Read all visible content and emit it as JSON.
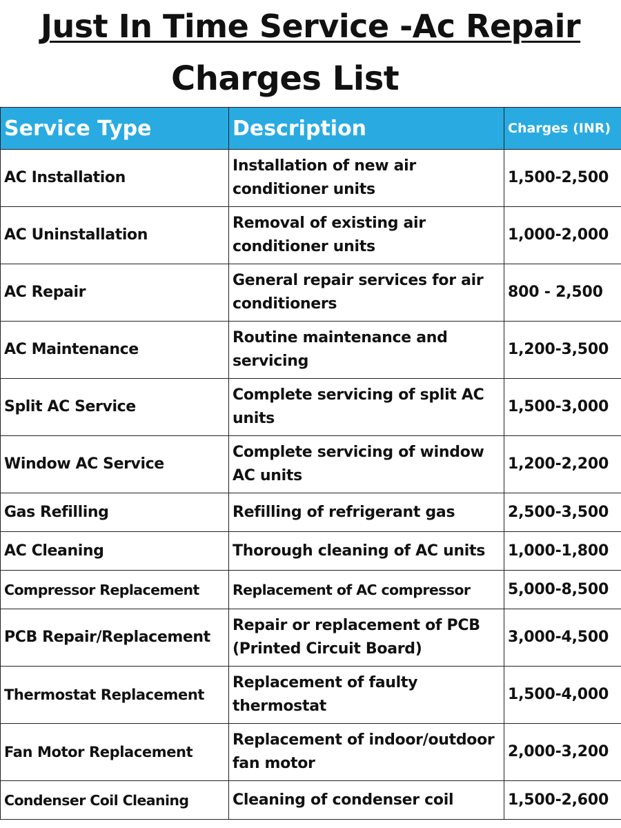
{
  "title": {
    "line1": "Just In Time Service -Ac Repair",
    "line2": "Charges List"
  },
  "table": {
    "headers": [
      "Service Type",
      "Description",
      "Charges (INR)"
    ],
    "header_color": "#29abe2",
    "rows": [
      {
        "service": "AC Installation",
        "description": "Installation of new air conditioner units",
        "charges": "1,500-2,500"
      },
      {
        "service": "AC Uninstallation",
        "description": "Removal of existing air conditioner units",
        "charges": "1,000-2,000"
      },
      {
        "service": "AC Repair",
        "description": "General repair services for air conditioners",
        "charges": "800 - 2,500"
      },
      {
        "service": "AC Maintenance",
        "description": "Routine maintenance and servicing",
        "charges": "1,200-3,500"
      },
      {
        "service": "Split AC Service",
        "description": "Complete servicing of split AC units",
        "charges": "1,500-3,000"
      },
      {
        "service": "Window AC Service",
        "description": "Complete servicing of window AC units",
        "charges": "1,200-2,200"
      },
      {
        "service": "Gas Refilling",
        "description": "Refilling of refrigerant gas",
        "charges": "2,500-3,500"
      },
      {
        "service": "AC Cleaning",
        "description": "Thorough cleaning of AC units",
        "charges": "1,000-1,800"
      },
      {
        "service": "Compressor Replacement",
        "description": "Replacement of AC compressor",
        "charges": "5,000-8,500"
      },
      {
        "service": "PCB Repair/Replacement",
        "description": "Repair or replacement of PCB (Printed Circuit Board)",
        "charges": "3,000-4,500"
      },
      {
        "service": "Thermostat Replacement",
        "description": "Replacement of faulty thermostat",
        "charges": "1,500-4,000"
      },
      {
        "service": "Fan Motor Replacement",
        "description": "Replacement of indoor/outdoor fan motor",
        "charges": "2,000-3,200"
      },
      {
        "service": "Condenser Coil Cleaning",
        "description": "Cleaning of condenser coil",
        "charges": "1,500-2,600"
      }
    ]
  }
}
